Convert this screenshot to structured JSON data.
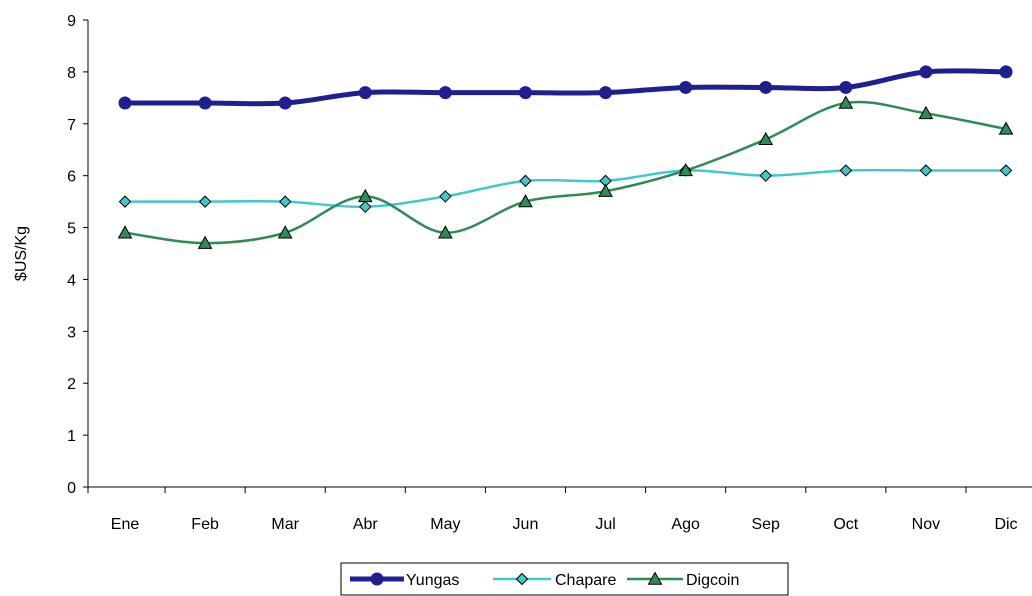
{
  "chart_data": {
    "type": "line",
    "title": "",
    "xlabel": "",
    "ylabel": "$US/Kg",
    "ylim": [
      0,
      9
    ],
    "yticks": [
      "0",
      "1",
      "2",
      "3",
      "4",
      "5",
      "6",
      "7",
      "8",
      "9"
    ],
    "grid": false,
    "legend_position": "bottom",
    "smooth": true,
    "categories": [
      "Ene",
      "Feb",
      "Mar",
      "Abr",
      "May",
      "Jun",
      "Jul",
      "Ago",
      "Sep",
      "Oct",
      "Nov",
      "Dic"
    ],
    "series": [
      {
        "name": "Yungas",
        "values": [
          7.4,
          7.4,
          7.4,
          7.6,
          7.6,
          7.6,
          7.6,
          7.7,
          7.7,
          7.7,
          8.0,
          8.0
        ],
        "color": "#1f1f8f",
        "marker": "circle"
      },
      {
        "name": "Chapare",
        "values": [
          5.5,
          5.5,
          5.5,
          5.4,
          5.6,
          5.9,
          5.9,
          6.1,
          6.0,
          6.1,
          6.1,
          6.1
        ],
        "color": "#40c8cc",
        "marker": "diamond"
      },
      {
        "name": "Digcoin",
        "values": [
          4.9,
          4.7,
          4.9,
          5.6,
          4.9,
          5.5,
          5.7,
          6.1,
          6.7,
          7.4,
          7.2,
          6.9
        ],
        "color": "#2e8b57",
        "marker": "triangle"
      }
    ]
  }
}
